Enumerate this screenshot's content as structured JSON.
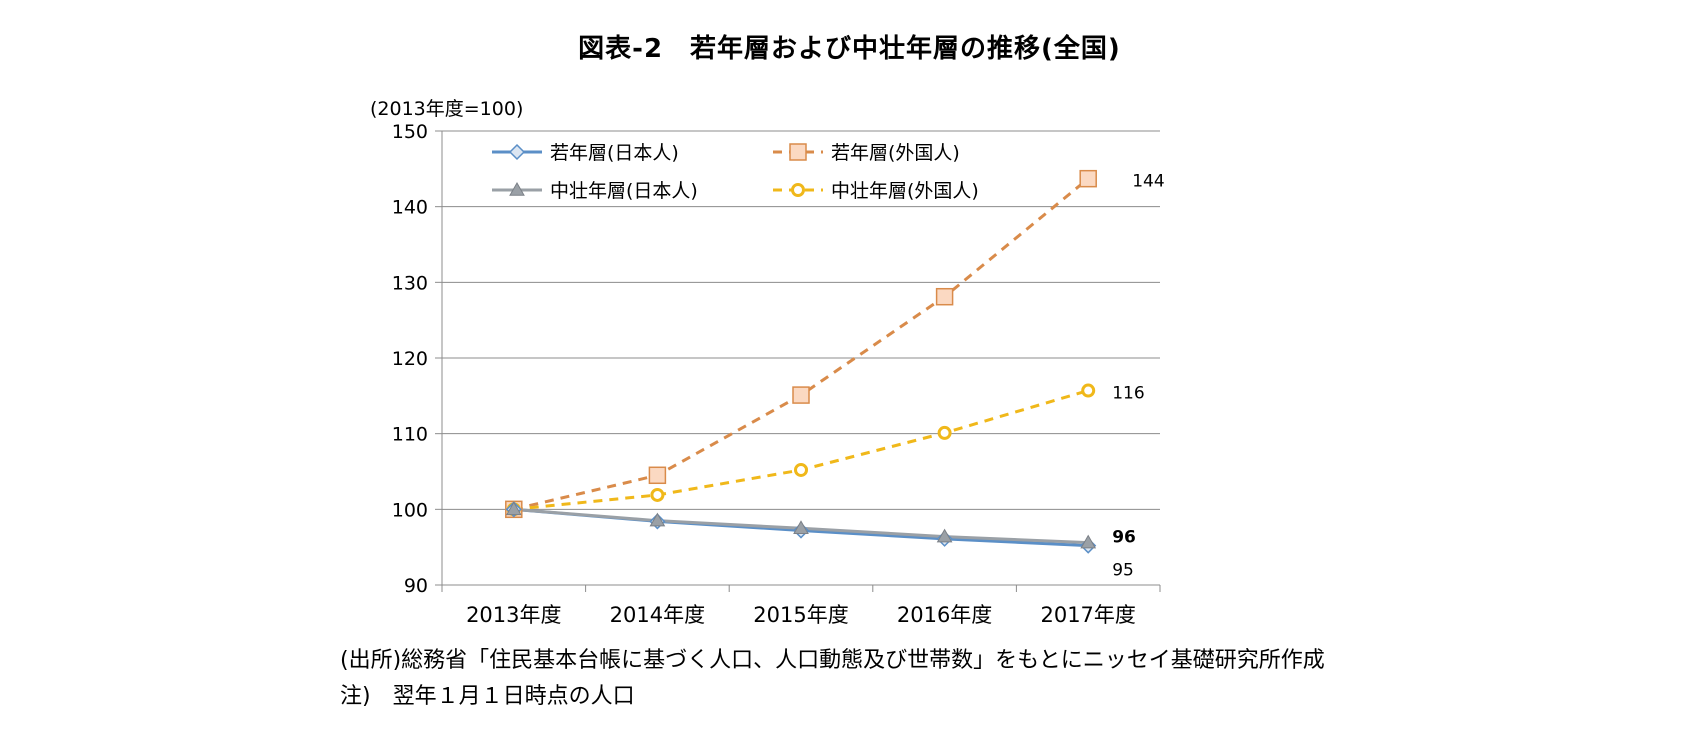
{
  "chart_data": {
    "type": "line",
    "title": "図表-2　若年層および中壮年層の推移(全国)",
    "ylabel": "(2013年度=100)",
    "xlabel": "",
    "categories": [
      "2013年度",
      "2014年度",
      "2015年度",
      "2016年度",
      "2017年度"
    ],
    "ylim": [
      90,
      150
    ],
    "yticks": [
      90,
      100,
      110,
      120,
      130,
      140,
      150
    ],
    "grid": true,
    "legend_position": "top-left",
    "series": [
      {
        "name": "若年層(日本人)",
        "values": [
          100,
          98.4,
          97.2,
          96.1,
          95.2
        ],
        "color": "#5b8fc7",
        "dash": false,
        "marker": "diamond",
        "end_label": "95",
        "end_label_bold": false
      },
      {
        "name": "若年層(外国人)",
        "values": [
          100,
          104.5,
          115.1,
          128.1,
          143.7
        ],
        "color": "#d98b4a",
        "dash": true,
        "marker": "square",
        "end_label": "144",
        "end_label_bold": false
      },
      {
        "name": "中壮年層(日本人)",
        "values": [
          100,
          98.5,
          97.5,
          96.4,
          95.6
        ],
        "color": "#9aa0a6",
        "dash": false,
        "marker": "triangle",
        "end_label": "96",
        "end_label_bold": true
      },
      {
        "name": "中壮年層(外国人)",
        "values": [
          100,
          101.9,
          105.2,
          110.1,
          115.7
        ],
        "color": "#f0b81a",
        "dash": true,
        "marker": "circle",
        "end_label": "116",
        "end_label_bold": false
      }
    ]
  },
  "source_note": "(出所)総務省「住民基本台帳に基づく人口、人口動態及び世帯数」をもとにニッセイ基礎研究所作成",
  "footnote": "注)　翌年１月１日時点の人口"
}
